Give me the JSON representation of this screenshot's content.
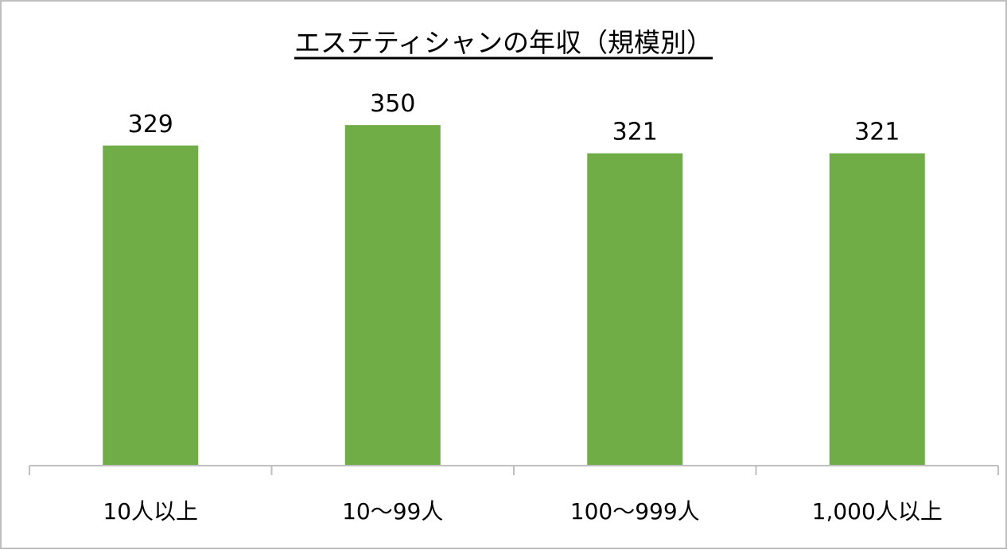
{
  "chart_data": {
    "type": "bar",
    "title": "エステティシャンの年収（規模別）",
    "categories": [
      "10人以上",
      "10～99人",
      "100～999人",
      "1,000人以上"
    ],
    "values": [
      329,
      350,
      321,
      321
    ],
    "xlabel": "",
    "ylabel": "",
    "ylim": [
      0,
      400
    ],
    "grid": false,
    "legend": "none",
    "bar_color": "#70AD47",
    "axis_color": "#BFBFBF"
  }
}
